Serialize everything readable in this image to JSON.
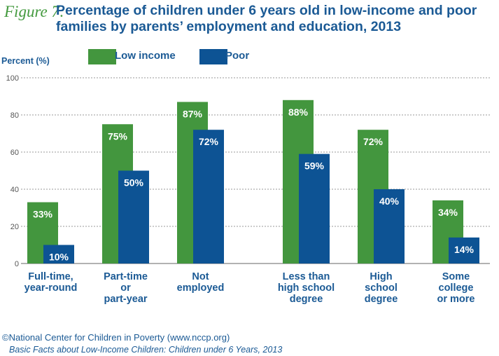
{
  "figure_label": "Figure 7:",
  "footer": {
    "credit": "©National Center for Children in Poverty (www.nccp.org)",
    "source": "Basic Facts about Low-Income Children: Children under 6 Years, 2013"
  },
  "colors": {
    "low_income": "#43963e",
    "poor": "#0d5394",
    "text": "#1b5a95"
  },
  "chart_data": {
    "type": "bar",
    "title": "Percentage of children under 6 years old in low-income and poor families by parents’ employment and education, 2013",
    "ylabel": "Percent (%)",
    "xlabel": "",
    "ylim": [
      0,
      100
    ],
    "yticks": [
      0,
      20,
      40,
      60,
      80,
      100
    ],
    "grid": true,
    "legend": "top",
    "categories": [
      [
        "Full-time,",
        "year-round"
      ],
      [
        "Part-time",
        "or",
        "part-year"
      ],
      [
        "Not",
        "employed"
      ],
      [
        "Less than",
        "high school",
        "degree"
      ],
      [
        "High",
        "school",
        "degree"
      ],
      [
        "Some",
        "college",
        "or more"
      ]
    ],
    "series": [
      {
        "name": "Low income",
        "values": [
          33,
          75,
          87,
          88,
          72,
          34
        ]
      },
      {
        "name": "Poor",
        "values": [
          10,
          50,
          72,
          59,
          40,
          14
        ]
      }
    ]
  }
}
